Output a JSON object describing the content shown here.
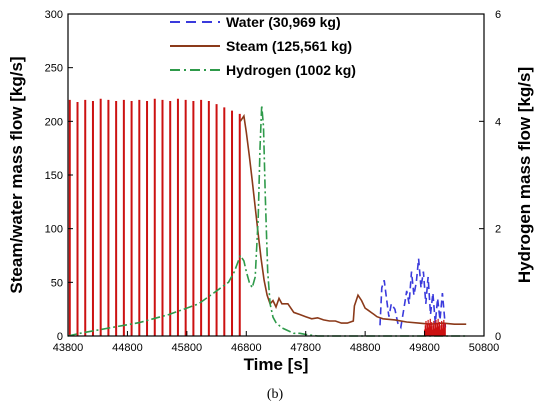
{
  "caption": "(b)",
  "chart_data": {
    "type": "line",
    "xlabel": "Time [s]",
    "ylabel": "Steam/water mass flow [kg/s]",
    "y2label": "Hydrogen mass flow [kg/s]",
    "xlim": [
      43800,
      50800
    ],
    "ylim": [
      0,
      300
    ],
    "y2lim": [
      0,
      6
    ],
    "xticks": [
      43800,
      44800,
      45800,
      46800,
      47800,
      48800,
      49800,
      50800
    ],
    "yticks": [
      0,
      50,
      100,
      150,
      200,
      250,
      300
    ],
    "y2ticks": [
      0,
      2,
      4,
      6
    ],
    "grid": false,
    "legend_position": "top-center",
    "colors": {
      "water": "#3a3adc",
      "steam": "#8b3a1a",
      "hydrogen": "#2e9a4a",
      "steam_spikes": "#cc1111"
    },
    "series": [
      {
        "name": "Water (30,969 kg)",
        "axis": "left",
        "style": "dashed",
        "x": [
          49050,
          49080,
          49120,
          49160,
          49200,
          49240,
          49300,
          49350,
          49400,
          49450,
          49500,
          49540,
          49580,
          49620,
          49660,
          49700,
          49740,
          49780,
          49820,
          49860,
          49900,
          49940,
          49980,
          50020,
          50060,
          50100,
          50150
        ],
        "y": [
          10,
          45,
          52,
          35,
          18,
          30,
          25,
          12,
          8,
          25,
          42,
          30,
          60,
          38,
          50,
          72,
          45,
          60,
          30,
          55,
          20,
          40,
          12,
          35,
          15,
          40,
          8
        ]
      },
      {
        "name": "Steam (125,561 kg)",
        "axis": "left",
        "style": "solid",
        "x": [
          46700,
          46760,
          46800,
          46850,
          46900,
          46950,
          47000,
          47050,
          47100,
          47150,
          47200,
          47250,
          47300,
          47350,
          47400,
          47500,
          47600,
          47700,
          47800,
          47900,
          48000,
          48100,
          48200,
          48300,
          48400,
          48500,
          48600,
          48620,
          48680,
          48740,
          48800,
          48850,
          48900,
          48950,
          49000,
          49100,
          49300,
          49500,
          49700,
          49900,
          50100,
          50300,
          50500
        ],
        "y": [
          200,
          205,
          190,
          168,
          145,
          120,
          95,
          72,
          52,
          38,
          30,
          33,
          27,
          35,
          30,
          30,
          22,
          20,
          18,
          16,
          17,
          15,
          14,
          14,
          12,
          12,
          14,
          28,
          38,
          33,
          26,
          24,
          22,
          20,
          18,
          16,
          15,
          13,
          12,
          11,
          12,
          11,
          11
        ]
      },
      {
        "name": "Hydrogen (1002 kg)",
        "axis": "right",
        "style": "dashdot",
        "x": [
          43800,
          44000,
          44500,
          45000,
          45500,
          46000,
          46500,
          46600,
          46700,
          46760,
          46800,
          46850,
          46900,
          46950,
          47000,
          47030,
          47060,
          47090,
          47120,
          47160,
          47200,
          47250,
          47300,
          47400,
          47500,
          47600,
          47700,
          47800,
          48000,
          48500,
          49000,
          49500,
          50000,
          50500
        ],
        "y": [
          0.0,
          0.05,
          0.15,
          0.25,
          0.4,
          0.6,
          1.0,
          1.2,
          1.5,
          1.4,
          1.2,
          1.0,
          0.9,
          1.1,
          2.2,
          3.5,
          4.3,
          3.9,
          2.6,
          1.2,
          0.6,
          0.35,
          0.25,
          0.15,
          0.1,
          0.05,
          0.05,
          0.03,
          0.0,
          0.0,
          0.0,
          0.0,
          0.0,
          0.0
        ]
      }
    ],
    "steam_spikes": {
      "x": [
        43830,
        43960,
        44090,
        44220,
        44350,
        44480,
        44610,
        44740,
        44870,
        45000,
        45130,
        45260,
        45390,
        45520,
        45650,
        45780,
        45910,
        46040,
        46170,
        46300,
        46430,
        46560,
        46690
      ],
      "peak": [
        220,
        218,
        220,
        219,
        221,
        220,
        219,
        220,
        219,
        220,
        219,
        221,
        220,
        219,
        221,
        220,
        219,
        220,
        219,
        216,
        213,
        210,
        207
      ]
    }
  },
  "legend": {
    "items": [
      {
        "key": "water",
        "label": "Water (30,969 kg)"
      },
      {
        "key": "steam",
        "label": "Steam (125,561 kg)"
      },
      {
        "key": "hydrogen",
        "label": "Hydrogen (1002 kg)"
      }
    ]
  }
}
